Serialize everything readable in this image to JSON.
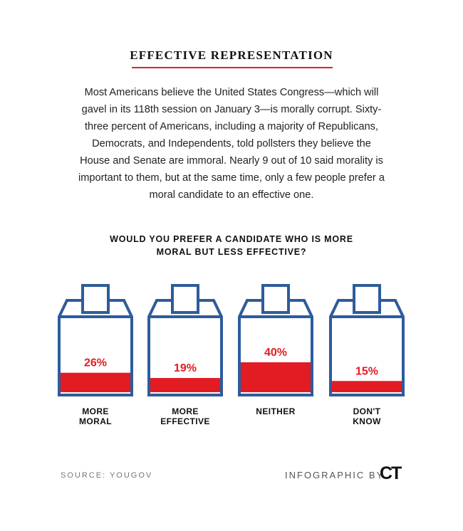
{
  "chart_data": {
    "type": "ballot",
    "title": "EFFECTIVE REPRESENTATION",
    "intro": "Most Americans believe the United States Congress—which will gavel in its 118th session on January 3—is morally corrupt. Sixty-three percent of Americans, including a majority of Republicans, Democrats, and Independents, told pollsters they believe the House and Senate are immoral. Nearly 9 out of 10 said morality is important to them, but at the same time, only a few people prefer a moral candidate to an effective one.",
    "subtitle": "WOULD YOU PREFER A CANDIDATE WHO IS MORE MORAL BUT LESS EFFECTIVE?",
    "categories": [
      "MORE MORAL",
      "MORE EFFECTIVE",
      "NEITHER",
      "DON'T KNOW"
    ],
    "values": [
      26,
      19,
      40,
      15
    ],
    "value_labels": [
      "26%",
      "19%",
      "40%",
      "15%"
    ],
    "color": "#e31b23",
    "box_color": "#2d5c9c",
    "source": "SOURCE: YOUGOV",
    "credit": "INFOGRAPHIC BY",
    "logo": "CT"
  }
}
